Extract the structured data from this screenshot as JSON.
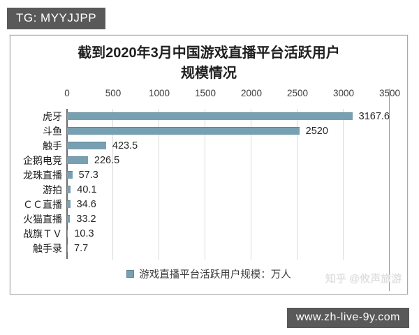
{
  "badge_top": {
    "text": "TG: MYYJJPP"
  },
  "badge_bottom": {
    "text": "www.zh-live-9y.com"
  },
  "watermark": {
    "text": "知乎 @攸声旅游"
  },
  "panel": {
    "title_line1": "截到2020年3月中国游戏直播平台活跃用户",
    "title_line2": "规模情况"
  },
  "chart_data": {
    "type": "bar",
    "orientation": "horizontal",
    "title": "截到2020年3月中国游戏直播平台活跃用户规模情况",
    "categories": [
      "虎牙",
      "斗鱼",
      "触手",
      "企鹅电竞",
      "龙珠直播",
      "游拍",
      "ＣＣ直播",
      "火猫直播",
      "战旗ＴＶ",
      "触手录"
    ],
    "values": [
      3167.6,
      2520,
      423.5,
      226.5,
      57.3,
      40.1,
      34.6,
      33.2,
      10.3,
      7.7
    ],
    "value_labels": [
      "3167.6",
      "2520",
      "423.5",
      "226.5",
      "57.3",
      "40.1",
      "34.6",
      "33.2",
      "10.3",
      "7.7"
    ],
    "x_ticks": [
      0,
      500,
      1000,
      1500,
      2000,
      2500,
      3000,
      3500
    ],
    "xlim": [
      0,
      3500
    ],
    "axis_position": "top",
    "grid": true,
    "bar_color": "#78a0b3",
    "legend": "游戏直播平台活跃用户规模：万人",
    "legend_position": "bottom",
    "unit": "万人"
  }
}
